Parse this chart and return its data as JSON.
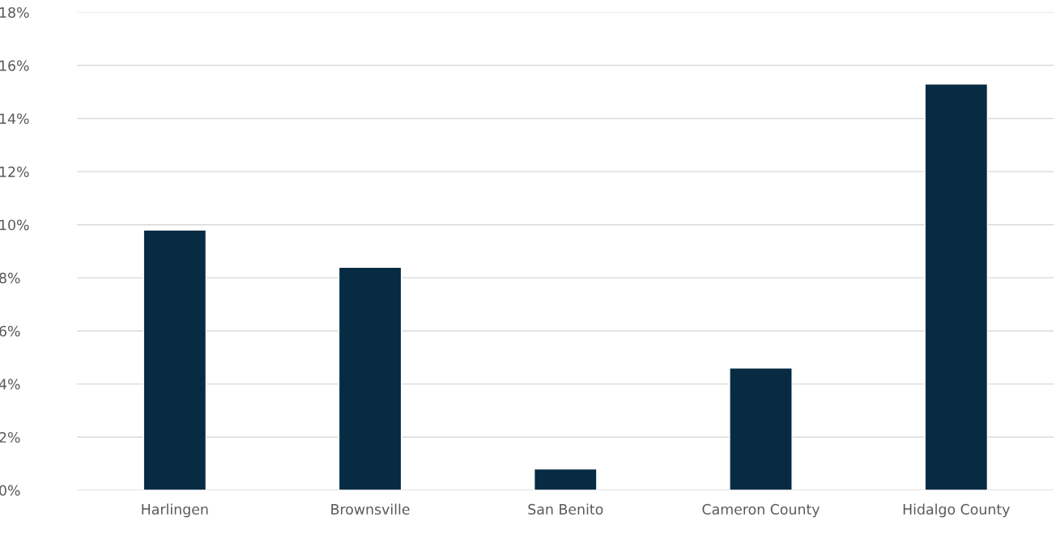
{
  "chart_data": {
    "type": "bar",
    "categories": [
      "Harlingen",
      "Brownsville",
      "San Benito",
      "Cameron County",
      "Hidalgo County"
    ],
    "values": [
      9.8,
      8.4,
      0.8,
      4.6,
      15.3
    ],
    "color": "#062b42",
    "ylim": [
      0,
      18
    ],
    "yticks": [
      {
        "value": 0,
        "label": "0%"
      },
      {
        "value": 2,
        "label": "2%"
      },
      {
        "value": 4,
        "label": "4%"
      },
      {
        "value": 6,
        "label": "6%"
      },
      {
        "value": 8,
        "label": "8%"
      },
      {
        "value": 10,
        "label": "10%"
      },
      {
        "value": 12,
        "label": "12%"
      },
      {
        "value": 14,
        "label": "14%"
      },
      {
        "value": 16,
        "label": "16%"
      },
      {
        "value": 18,
        "label": "18%"
      }
    ],
    "grid": "y"
  }
}
